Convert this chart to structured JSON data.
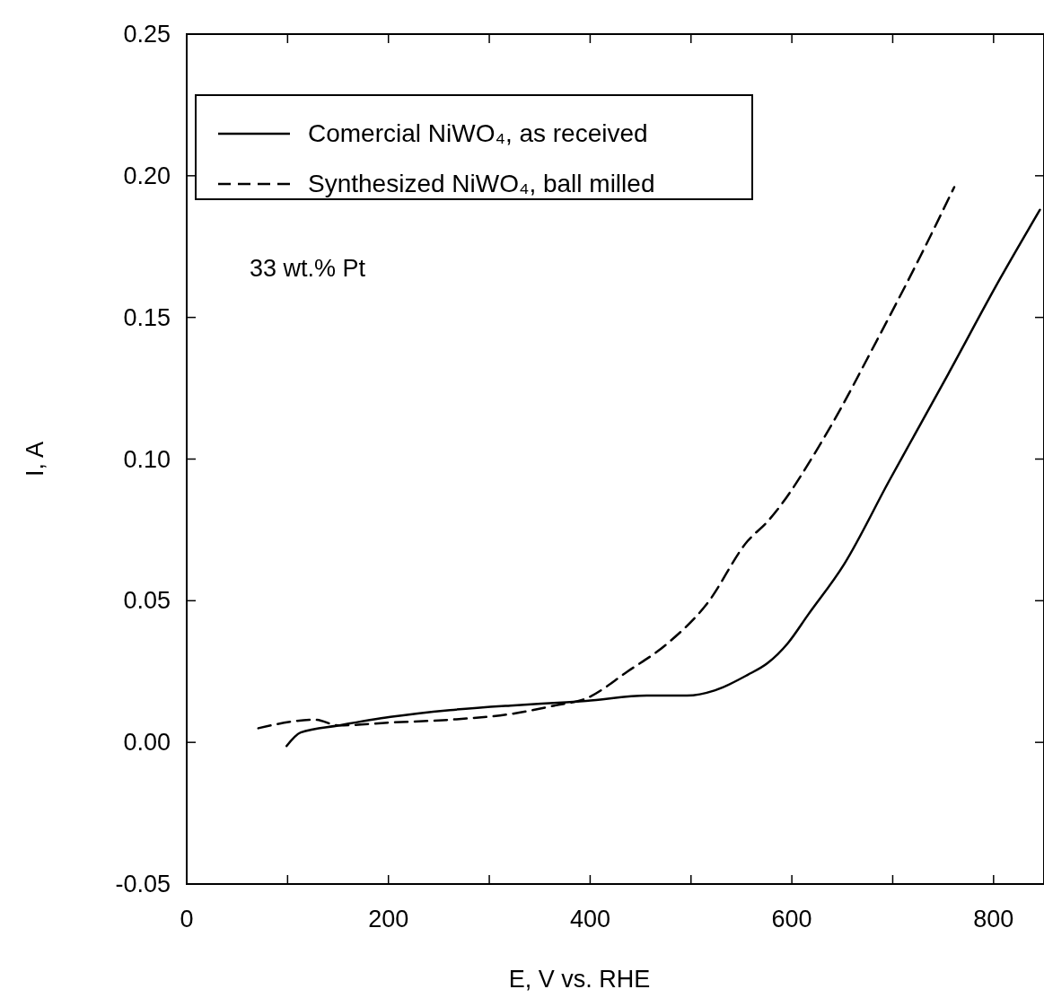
{
  "chart_data": {
    "type": "line",
    "xlabel": "E, V vs. RHE",
    "ylabel": "I, A",
    "xlim": [
      0,
      850
    ],
    "ylim": [
      -0.05,
      0.25
    ],
    "xticks": [
      0,
      {
        "value": 100,
        "label": null
      },
      200,
      {
        "value": 300,
        "label": null
      },
      400,
      {
        "value": 500,
        "label": null
      },
      600,
      {
        "value": 700,
        "label": null
      },
      800
    ],
    "yticks": [
      {
        "value": -0.05,
        "label": "-0.05"
      },
      {
        "value": 0,
        "label": "0.00"
      },
      {
        "value": 0.05,
        "label": "0.05"
      },
      {
        "value": 0.1,
        "label": "0.10"
      },
      {
        "value": 0.15,
        "label": "0.15"
      },
      {
        "value": 0.2,
        "label": "0.20"
      },
      {
        "value": 0.25,
        "label": "0.25"
      }
    ],
    "grid": false,
    "legend": "top left",
    "marker": "none",
    "annotations": [
      {
        "text": "33 wt.% Pt"
      }
    ],
    "series": [
      {
        "name": "Comercial NiWO₄, as received",
        "color": "#000000",
        "line_style": "solid",
        "x": [
          99,
          113,
          151,
          202,
          261,
          321,
          368,
          396,
          456,
          496,
          524,
          556,
          576,
          596,
          616,
          652,
          696,
          755,
          807,
          846
        ],
        "values": [
          -0.0013,
          0.0035,
          0.006,
          0.009,
          0.0114,
          0.013,
          0.014,
          0.0146,
          0.0165,
          0.0165,
          0.0184,
          0.0238,
          0.028,
          0.035,
          0.045,
          0.063,
          0.092,
          0.13,
          0.164,
          0.188
        ]
      },
      {
        "name": "Synthesized NiWO₄, ball milled",
        "color": "#000000",
        "line_style": "dashed",
        "x": [
          71,
          127,
          151,
          202,
          261,
          321,
          365,
          396,
          437,
          477,
          516,
          556,
          576,
          636,
          683,
          728,
          761
        ],
        "values": [
          0.005,
          0.008,
          0.006,
          0.007,
          0.008,
          0.01,
          0.013,
          0.0155,
          0.025,
          0.035,
          0.049,
          0.071,
          0.078,
          0.11,
          0.141,
          0.172,
          0.196
        ]
      }
    ]
  }
}
